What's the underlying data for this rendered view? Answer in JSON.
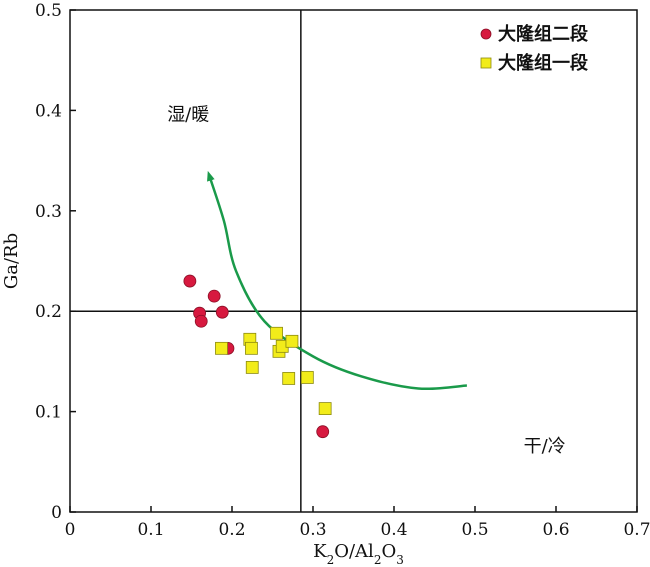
{
  "chart_data": {
    "type": "scatter",
    "xlabel": "K₂O/Al₂O₃",
    "ylabel": "Ga/Rb",
    "xlim": [
      0,
      0.7
    ],
    "ylim": [
      0,
      0.5
    ],
    "xticks": [
      0,
      0.1,
      0.2,
      0.3,
      0.4,
      0.5,
      0.6,
      0.7
    ],
    "xtick_labels": [
      "0",
      "0.1",
      "0.2",
      "0.3",
      "0.4",
      "0.5",
      "0.6",
      "0.7"
    ],
    "yticks": [
      0,
      0.1,
      0.2,
      0.3,
      0.4,
      0.5
    ],
    "ytick_labels": [
      "0",
      "0.1",
      "0.2",
      "0.3",
      "0.4",
      "0.5"
    ],
    "grid": false,
    "legend_position": "top-right",
    "reference_lines": {
      "vertical_x": 0.285,
      "horizontal_y": 0.2
    },
    "region_labels": [
      {
        "text": "湿/暖",
        "x": 0.12,
        "y": 0.39
      },
      {
        "text": "干/冷",
        "x": 0.56,
        "y": 0.06
      }
    ],
    "trend_arrow": {
      "color": "#1a9a4a",
      "points": [
        [
          0.49,
          0.126
        ],
        [
          0.43,
          0.123
        ],
        [
          0.36,
          0.135
        ],
        [
          0.3,
          0.155
        ],
        [
          0.24,
          0.19
        ],
        [
          0.205,
          0.24
        ],
        [
          0.19,
          0.29
        ],
        [
          0.172,
          0.335
        ]
      ]
    },
    "series": [
      {
        "name": "大隆组二段",
        "marker": "circle",
        "color": "#d7193f",
        "points": [
          [
            0.148,
            0.23
          ],
          [
            0.16,
            0.198
          ],
          [
            0.162,
            0.19
          ],
          [
            0.178,
            0.215
          ],
          [
            0.188,
            0.199
          ],
          [
            0.195,
            0.163
          ],
          [
            0.312,
            0.08
          ]
        ]
      },
      {
        "name": "大隆组一段",
        "marker": "square",
        "color": "#f2ec1a",
        "points": [
          [
            0.187,
            0.163
          ],
          [
            0.222,
            0.172
          ],
          [
            0.224,
            0.163
          ],
          [
            0.225,
            0.144
          ],
          [
            0.255,
            0.178
          ],
          [
            0.258,
            0.16
          ],
          [
            0.262,
            0.165
          ],
          [
            0.27,
            0.133
          ],
          [
            0.274,
            0.17
          ],
          [
            0.293,
            0.134
          ],
          [
            0.315,
            0.103
          ]
        ]
      }
    ]
  }
}
